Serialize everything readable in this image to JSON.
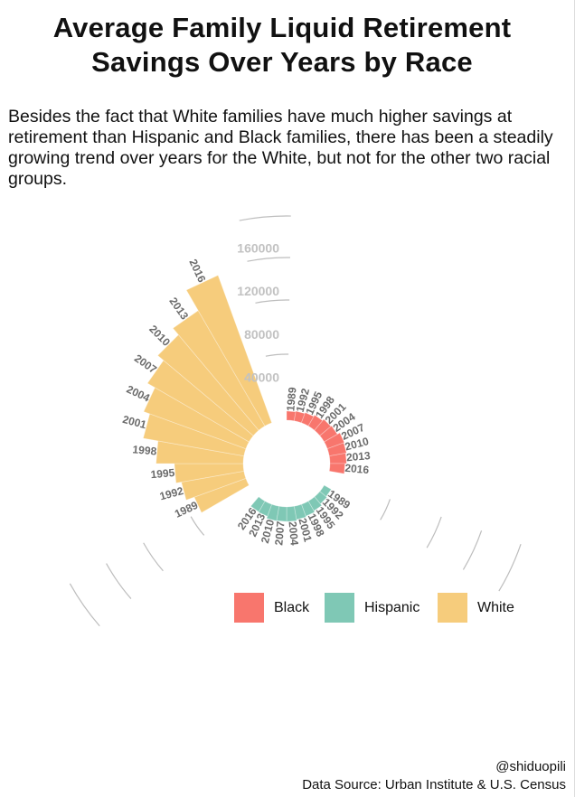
{
  "title": {
    "line1": "Average Family Liquid Retirement",
    "line2": "Savings Over Years by Race"
  },
  "subtitle": "Besides the fact that White families have much higher savings at retirement than Hispanic and Black families, there has been a steadily growing trend over years for the White, but not for the other two racial groups.",
  "caption": {
    "author": "@shiduopili",
    "source": "Data Source: Urban Institute & U.S. Census"
  },
  "chart_data": {
    "type": "bar",
    "polar": true,
    "radial_axis": {
      "ticks": [
        40000,
        80000,
        120000,
        160000
      ],
      "tick_labels": [
        "40000",
        "80000",
        "120000",
        "160000"
      ],
      "range": [
        0,
        160000
      ]
    },
    "years": [
      "1989",
      "1992",
      "1995",
      "1998",
      "2001",
      "2004",
      "2007",
      "2010",
      "2013",
      "2016"
    ],
    "series": [
      {
        "name": "Black",
        "color": "#F8766D",
        "values": [
          8500,
          9200,
          10200,
          11800,
          13500,
          14200,
          16800,
          16200,
          15400,
          14000
        ]
      },
      {
        "name": "Hispanic",
        "color": "#7FC8B5",
        "values": [
          7600,
          8600,
          10500,
          11800,
          12600,
          13700,
          13600,
          13900,
          11900,
          11500
        ]
      },
      {
        "name": "White",
        "color": "#F6CC7C",
        "values": [
          51000,
          59000,
          64000,
          81000,
          95000,
          101000,
          109000,
          116000,
          124000,
          146000
        ]
      }
    ],
    "legend": {
      "position": "bottom",
      "items": [
        "Black",
        "Hispanic",
        "White"
      ]
    },
    "grid": true
  }
}
